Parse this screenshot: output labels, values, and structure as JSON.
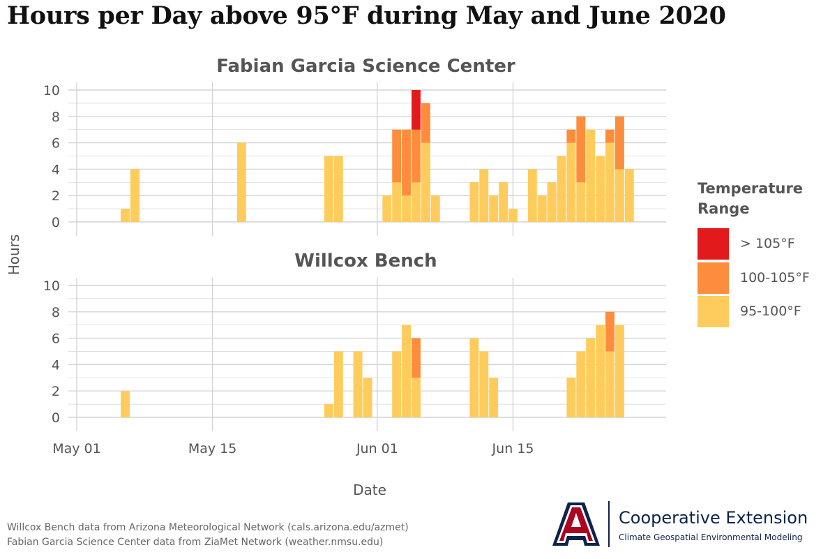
{
  "title": "Hours per Day above 95°F during May and June 2020",
  "colors": {
    "gt105": "#e31a1c",
    "r100_105": "#fd8d3c",
    "r95_100": "#fecc5c",
    "grid": "#d4d4d4",
    "text": "#555555"
  },
  "legend": {
    "title_line1": "Temperature",
    "title_line2": "Range",
    "items": [
      {
        "label": "> 105°F",
        "color": "#e31a1c"
      },
      {
        "label": "100-105°F",
        "color": "#fd8d3c"
      },
      {
        "label": "95-100°F",
        "color": "#fecc5c"
      }
    ]
  },
  "chart_data": {
    "type": "bar",
    "stacked": true,
    "xlabel": "Date",
    "ylabel": "Hours",
    "ylim": [
      0,
      10
    ],
    "yticks": [
      0,
      2,
      4,
      6,
      8,
      10
    ],
    "xticks": [
      {
        "day": 1,
        "label": "May 01"
      },
      {
        "day": 15,
        "label": "May 15"
      },
      {
        "day": 32,
        "label": "Jun 01"
      },
      {
        "day": 46,
        "label": "Jun 15"
      }
    ],
    "x_unit": "day of period (1 = May 01, 32 = Jun 01)",
    "series_names": [
      "95-100°F",
      "100-105°F",
      "> 105°F"
    ],
    "panels": [
      {
        "name": "Fabian Garcia Science Center",
        "bars": [
          {
            "day": 6,
            "label": "May 06",
            "values": [
              1,
              0,
              0
            ]
          },
          {
            "day": 7,
            "label": "May 07",
            "values": [
              4,
              0,
              0
            ]
          },
          {
            "day": 18,
            "label": "May 18",
            "values": [
              6,
              0,
              0
            ]
          },
          {
            "day": 27,
            "label": "May 27",
            "values": [
              5,
              0,
              0
            ]
          },
          {
            "day": 28,
            "label": "May 28",
            "values": [
              5,
              0,
              0
            ]
          },
          {
            "day": 33,
            "label": "Jun 02",
            "values": [
              2,
              0,
              0
            ]
          },
          {
            "day": 34,
            "label": "Jun 03",
            "values": [
              3,
              4,
              0
            ]
          },
          {
            "day": 35,
            "label": "Jun 04",
            "values": [
              2,
              5,
              0
            ]
          },
          {
            "day": 36,
            "label": "Jun 05",
            "values": [
              3,
              4,
              3
            ]
          },
          {
            "day": 37,
            "label": "Jun 06",
            "values": [
              6,
              3,
              0
            ]
          },
          {
            "day": 38,
            "label": "Jun 07",
            "values": [
              2,
              0,
              0
            ]
          },
          {
            "day": 42,
            "label": "Jun 11",
            "values": [
              3,
              0,
              0
            ]
          },
          {
            "day": 43,
            "label": "Jun 12",
            "values": [
              4,
              0,
              0
            ]
          },
          {
            "day": 44,
            "label": "Jun 13",
            "values": [
              2,
              0,
              0
            ]
          },
          {
            "day": 45,
            "label": "Jun 14",
            "values": [
              3,
              0,
              0
            ]
          },
          {
            "day": 46,
            "label": "Jun 15",
            "values": [
              1,
              0,
              0
            ]
          },
          {
            "day": 48,
            "label": "Jun 17",
            "values": [
              4,
              0,
              0
            ]
          },
          {
            "day": 49,
            "label": "Jun 18",
            "values": [
              2,
              0,
              0
            ]
          },
          {
            "day": 50,
            "label": "Jun 19",
            "values": [
              3,
              0,
              0
            ]
          },
          {
            "day": 51,
            "label": "Jun 20",
            "values": [
              5,
              0,
              0
            ]
          },
          {
            "day": 52,
            "label": "Jun 21",
            "values": [
              6,
              1,
              0
            ]
          },
          {
            "day": 53,
            "label": "Jun 22",
            "values": [
              3,
              5,
              0
            ]
          },
          {
            "day": 54,
            "label": "Jun 23",
            "values": [
              7,
              0,
              0
            ]
          },
          {
            "day": 55,
            "label": "Jun 24",
            "values": [
              5,
              0,
              0
            ]
          },
          {
            "day": 56,
            "label": "Jun 25",
            "values": [
              6,
              1,
              0
            ]
          },
          {
            "day": 57,
            "label": "Jun 26",
            "values": [
              4,
              4,
              0
            ]
          },
          {
            "day": 58,
            "label": "Jun 27",
            "values": [
              4,
              0,
              0
            ]
          }
        ]
      },
      {
        "name": "Willcox Bench",
        "bars": [
          {
            "day": 6,
            "label": "May 06",
            "values": [
              2,
              0,
              0
            ]
          },
          {
            "day": 27,
            "label": "May 27",
            "values": [
              1,
              0,
              0
            ]
          },
          {
            "day": 28,
            "label": "May 28",
            "values": [
              5,
              0,
              0
            ]
          },
          {
            "day": 30,
            "label": "May 30",
            "values": [
              5,
              0,
              0
            ]
          },
          {
            "day": 31,
            "label": "May 31",
            "values": [
              3,
              0,
              0
            ]
          },
          {
            "day": 34,
            "label": "Jun 03",
            "values": [
              5,
              0,
              0
            ]
          },
          {
            "day": 35,
            "label": "Jun 04",
            "values": [
              7,
              0,
              0
            ]
          },
          {
            "day": 36,
            "label": "Jun 05",
            "values": [
              3,
              3,
              0
            ]
          },
          {
            "day": 42,
            "label": "Jun 11",
            "values": [
              6,
              0,
              0
            ]
          },
          {
            "day": 43,
            "label": "Jun 12",
            "values": [
              5,
              0,
              0
            ]
          },
          {
            "day": 44,
            "label": "Jun 13",
            "values": [
              3,
              0,
              0
            ]
          },
          {
            "day": 52,
            "label": "Jun 21",
            "values": [
              3,
              0,
              0
            ]
          },
          {
            "day": 53,
            "label": "Jun 22",
            "values": [
              5,
              0,
              0
            ]
          },
          {
            "day": 54,
            "label": "Jun 23",
            "values": [
              6,
              0,
              0
            ]
          },
          {
            "day": 55,
            "label": "Jun 24",
            "values": [
              7,
              0,
              0
            ]
          },
          {
            "day": 56,
            "label": "Jun 25",
            "values": [
              5,
              3,
              0
            ]
          },
          {
            "day": 57,
            "label": "Jun 26",
            "values": [
              7,
              0,
              0
            ]
          }
        ]
      }
    ]
  },
  "sources": [
    "Willcox Bench data from Arizona Meteorological Network (cals.arizona.edu/azmet)",
    "Fabian Garcia Science Center data from ZiaMet Network (weather.nmsu.edu)"
  ],
  "logo": {
    "letter": "A",
    "title": "Cooperative Extension",
    "subtitle": "Climate Geospatial Environmental Modeling",
    "navy": "#0c234b",
    "red": "#ab0520"
  }
}
